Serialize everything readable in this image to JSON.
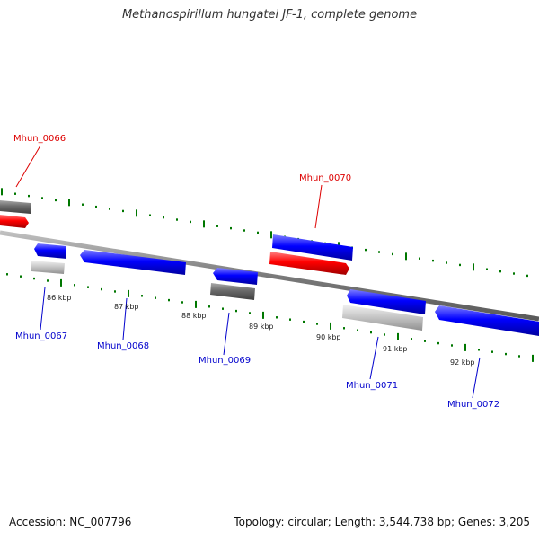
{
  "title": "Methanospirillum hungatei JF-1, complete genome",
  "footer": {
    "accession": "Accession: NC_007796",
    "summary": "Topology: circular; Length: 3,544,738 bp; Genes: 3,205"
  },
  "colors": {
    "forward_gene": "#ff0000",
    "reverse_gene": "#0000ff",
    "tick": "#007700",
    "backbone": "#8a8a8a"
  },
  "genes": [
    {
      "id": "Mhun_0066",
      "label_color": "#dd0000"
    },
    {
      "id": "Mhun_0067",
      "label_color": "#0000cc"
    },
    {
      "id": "Mhun_0068",
      "label_color": "#0000cc"
    },
    {
      "id": "Mhun_0069",
      "label_color": "#0000cc"
    },
    {
      "id": "Mhun_0070",
      "label_color": "#dd0000"
    },
    {
      "id": "Mhun_0071",
      "label_color": "#0000cc"
    },
    {
      "id": "Mhun_0072",
      "label_color": "#0000cc"
    }
  ],
  "ruler": [
    "86 kbp",
    "87 kbp",
    "88 kbp",
    "89 kbp",
    "90 kbp",
    "91 kbp",
    "92 kbp"
  ]
}
